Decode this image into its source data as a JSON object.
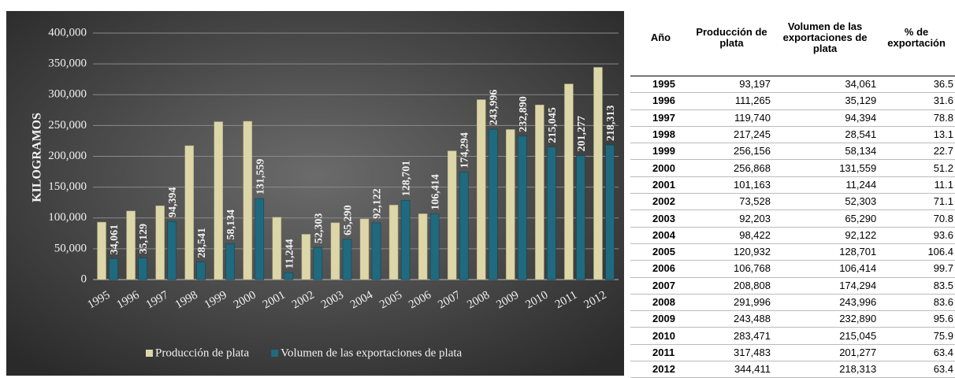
{
  "chart_data": {
    "type": "bar",
    "y_label": "KILOGRAMOS",
    "categories": [
      "1995",
      "1996",
      "1997",
      "1998",
      "1999",
      "2000",
      "2001",
      "2002",
      "2003",
      "2004",
      "2005",
      "2006",
      "2007",
      "2008",
      "2009",
      "2010",
      "2011",
      "2012"
    ],
    "series": [
      {
        "name": "Producción de plata",
        "color": "#ddd6a8",
        "values": [
          93197,
          111265,
          119740,
          217245,
          256156,
          256868,
          101163,
          73528,
          92203,
          98422,
          120932,
          106768,
          208808,
          291996,
          243488,
          283471,
          317483,
          344411
        ]
      },
      {
        "name": "Volumen de las exportaciones de plata",
        "color": "#1f6a7e",
        "values": [
          34061,
          35129,
          94394,
          28541,
          58134,
          131559,
          11244,
          52303,
          65290,
          92122,
          128701,
          106414,
          174294,
          243996,
          232890,
          215045,
          201277,
          218313
        ],
        "value_labels": [
          "34,061",
          "35,129",
          "94,394",
          "28,541",
          "58,134",
          "131,559",
          "11,244",
          "52,303",
          "65,290",
          "92,122",
          "128,701",
          "106,414",
          "174,294",
          "243,996",
          "232,890",
          "215,045",
          "201,277",
          "218,313"
        ]
      }
    ],
    "ylim": [
      0,
      400000
    ],
    "yticks": [
      0,
      {
        "value": 50000,
        "label": "50,000"
      },
      {
        "value": 100000,
        "label": "100,000"
      },
      {
        "value": 150000,
        "label": "150,000"
      },
      {
        "value": 200000,
        "label": "200,000"
      },
      {
        "value": 250000,
        "label": "250,000"
      },
      {
        "value": 300000,
        "label": "300,000"
      },
      {
        "value": 350000,
        "label": "350,000"
      },
      {
        "value": 400000,
        "label": "400,000"
      }
    ],
    "grid": true,
    "legend": "bottom"
  },
  "table": {
    "header": [
      "Año",
      "Producción de plata",
      "Volumen de las exportaciones de plata",
      "% de exportación"
    ],
    "rows": [
      [
        "1995",
        "93,197",
        "34,061",
        "36.5"
      ],
      [
        "1996",
        "111,265",
        "35,129",
        "31.6"
      ],
      [
        "1997",
        "119,740",
        "94,394",
        "78.8"
      ],
      [
        "1998",
        "217,245",
        "28,541",
        "13.1"
      ],
      [
        "1999",
        "256,156",
        "58,134",
        "22.7"
      ],
      [
        "2000",
        "256,868",
        "131,559",
        "51.2"
      ],
      [
        "2001",
        "101,163",
        "11,244",
        "11.1"
      ],
      [
        "2002",
        "73,528",
        "52,303",
        "71.1"
      ],
      [
        "2003",
        "92,203",
        "65,290",
        "70.8"
      ],
      [
        "2004",
        "98,422",
        "92,122",
        "93.6"
      ],
      [
        "2005",
        "120,932",
        "128,701",
        "106.4"
      ],
      [
        "2006",
        "106,768",
        "106,414",
        "99.7"
      ],
      [
        "2007",
        "208,808",
        "174,294",
        "83.5"
      ],
      [
        "2008",
        "291,996",
        "243,996",
        "83.6"
      ],
      [
        "2009",
        "243,488",
        "232,890",
        "95.6"
      ],
      [
        "2010",
        "283,471",
        "215,045",
        "75.9"
      ],
      [
        "2011",
        "317,483",
        "201,277",
        "63.4"
      ],
      [
        "2012",
        "344,411",
        "218,313",
        "63.4"
      ]
    ]
  }
}
